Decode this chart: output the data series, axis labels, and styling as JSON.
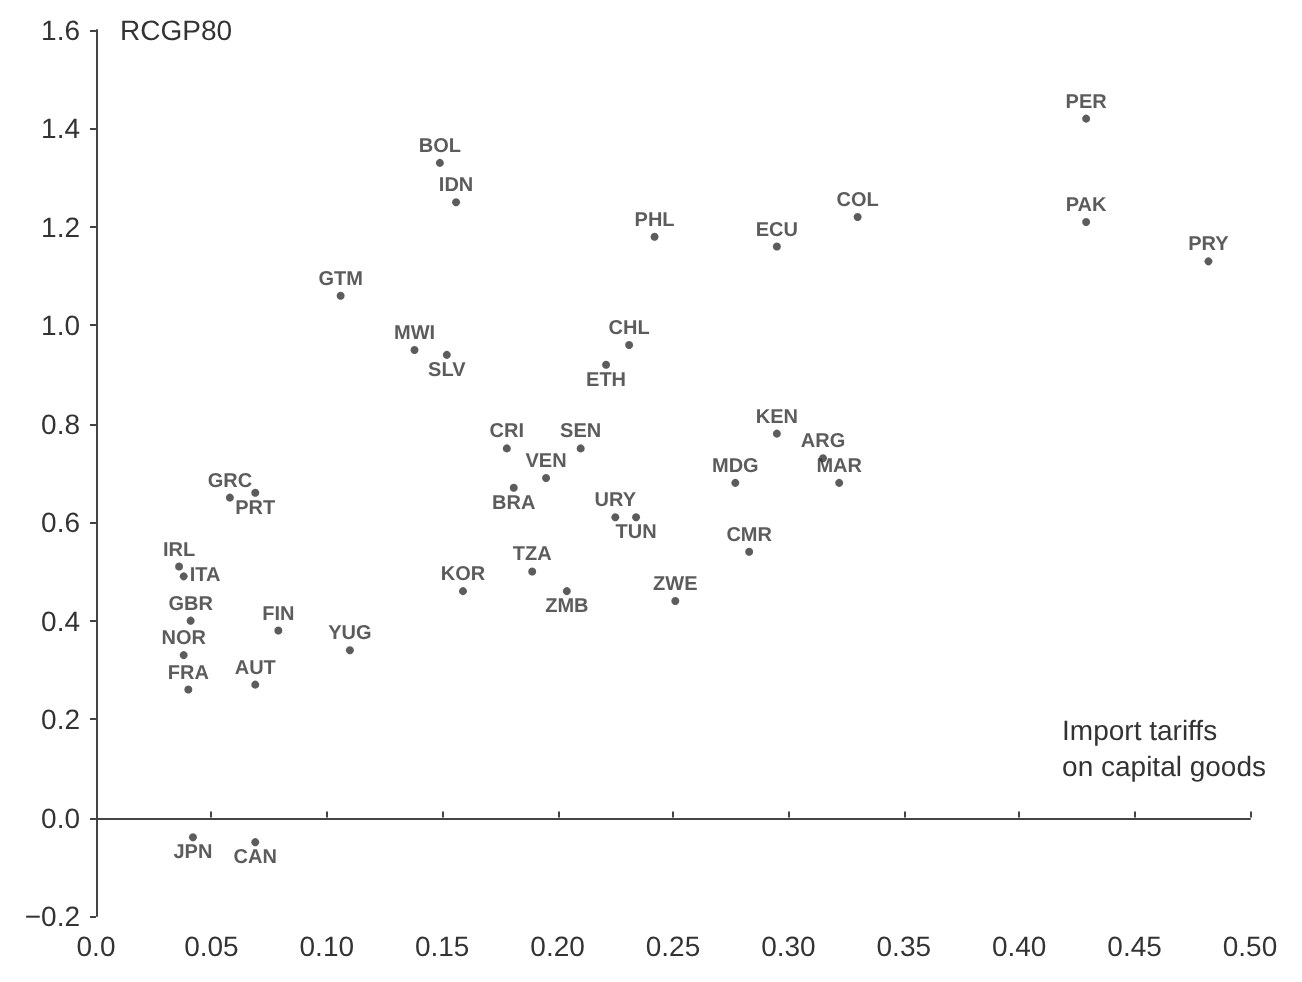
{
  "chart_data": {
    "type": "scatter",
    "xlabel": "Import tariffs\non capital goods",
    "ylabel": "RCGP80",
    "xlim": [
      0,
      0.5
    ],
    "xticks": [
      {
        "value": 0,
        "label": "0.0"
      },
      0.05,
      {
        "value": 0.1,
        "label": "0.10"
      },
      0.15,
      {
        "value": 0.2,
        "label": "0.20"
      },
      0.25,
      {
        "value": 0.3,
        "label": "0.30"
      },
      0.35,
      {
        "value": 0.4,
        "label": "0.40"
      },
      0.45,
      {
        "value": 0.5,
        "label": "0.50"
      }
    ],
    "ylim": [
      -0.2,
      1.6
    ],
    "yticks": [
      {
        "value": -0.2,
        "label": "−0.2"
      },
      {
        "value": 0,
        "label": "0.0"
      },
      0.2,
      0.4,
      0.6,
      0.8,
      {
        "value": 1,
        "label": "1.0"
      },
      1.2,
      1.4,
      1.6
    ],
    "marker": "circle",
    "series": [
      {
        "color": "#333333",
        "x": [
          0.149,
          0.156,
          0.106,
          0.138,
          0.152,
          0.231,
          0.221,
          0.242,
          0.295,
          0.33,
          0.429,
          0.429,
          0.482,
          0.295,
          0.315,
          0.277,
          0.322,
          0.178,
          0.21,
          0.195,
          0.181,
          0.225,
          0.234,
          0.283,
          0.251,
          0.159,
          0.189,
          0.204,
          0.11,
          0.079,
          0.041,
          0.038,
          0.04,
          0.069,
          0.058,
          0.069,
          0.036,
          0.038,
          0.042,
          0.069
        ],
        "values": [
          1.33,
          1.25,
          1.06,
          0.95,
          0.94,
          0.96,
          0.92,
          1.18,
          1.16,
          1.22,
          1.42,
          1.21,
          1.13,
          0.78,
          0.73,
          0.68,
          0.68,
          0.75,
          0.75,
          0.69,
          0.67,
          0.61,
          0.61,
          0.54,
          0.44,
          0.46,
          0.5,
          0.46,
          0.34,
          0.38,
          0.4,
          0.33,
          0.26,
          0.27,
          0.65,
          0.66,
          0.51,
          0.49,
          -0.04,
          -0.05
        ],
        "value_labels": [
          "BOL",
          "IDN",
          "GTM",
          "MWI",
          "SLV",
          "CHL",
          "ETH",
          "PHL",
          "ECU",
          "COL",
          "PER",
          "PAK",
          "PRY",
          "KEN",
          "ARG",
          "MDG",
          "MAR",
          "CRI",
          "SEN",
          "VEN",
          "BRA",
          "URY",
          "TUN",
          "CMR",
          "ZWE",
          "KOR",
          "TZA",
          "ZMB",
          "YUG",
          "FIN",
          "GBR",
          "NOR",
          "FRA",
          "AUT",
          "GRC",
          "PRT",
          "IRL",
          "ITA",
          "JPN",
          "CAN"
        ]
      }
    ]
  }
}
